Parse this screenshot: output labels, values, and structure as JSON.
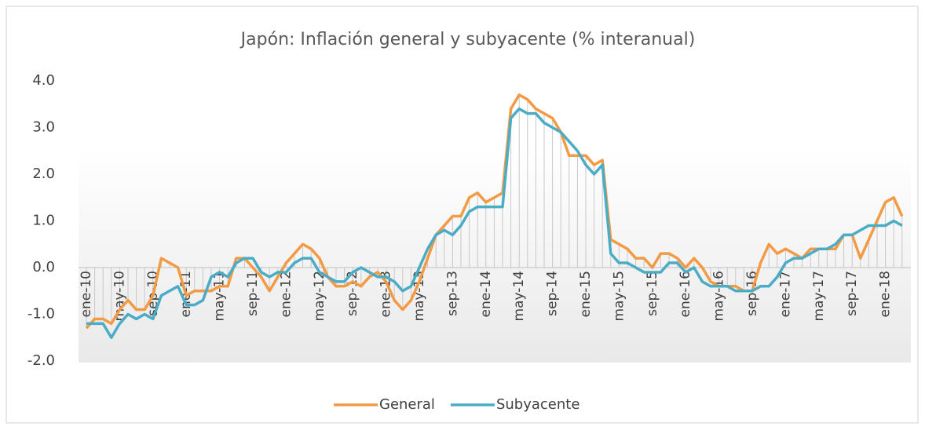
{
  "chart_data": {
    "type": "line",
    "title": "Japón: Inflación general y subyacente (% interanual)",
    "categories": [
      "ene-10",
      null,
      null,
      null,
      "may-10",
      null,
      null,
      null,
      "sep-10",
      null,
      null,
      null,
      "ene-11",
      null,
      null,
      null,
      "may-11",
      null,
      null,
      null,
      "sep-11",
      null,
      null,
      null,
      "ene-12",
      null,
      null,
      null,
      "may-12",
      null,
      null,
      null,
      "sep-12",
      null,
      null,
      null,
      "ene-13",
      null,
      null,
      null,
      "may-13",
      null,
      null,
      null,
      "sep-13",
      null,
      null,
      null,
      "ene-14",
      null,
      null,
      null,
      "may-14",
      null,
      null,
      null,
      "sep-14",
      null,
      null,
      null,
      "ene-15",
      null,
      null,
      null,
      "may-15",
      null,
      null,
      null,
      "sep-15",
      null,
      null,
      null,
      "ene-16",
      null,
      null,
      null,
      "may-16",
      null,
      null,
      null,
      "sep-16",
      null,
      null,
      null,
      "ene-17",
      null,
      null,
      null,
      "may-17",
      null,
      null,
      null,
      "sep-17",
      null,
      null,
      null,
      "ene-18",
      null,
      null
    ],
    "series": [
      {
        "name": "General",
        "color": "#f39a45",
        "values": [
          -1.3,
          -1.1,
          -1.1,
          -1.2,
          -0.9,
          -0.7,
          -0.9,
          -0.9,
          -0.6,
          0.2,
          0.1,
          0.0,
          -0.6,
          -0.5,
          -0.5,
          -0.5,
          -0.4,
          -0.4,
          0.2,
          0.2,
          0.0,
          -0.2,
          -0.5,
          -0.2,
          0.1,
          0.3,
          0.5,
          0.4,
          0.2,
          -0.2,
          -0.4,
          -0.4,
          -0.3,
          -0.4,
          -0.2,
          -0.1,
          -0.3,
          -0.7,
          -0.9,
          -0.7,
          -0.3,
          0.2,
          0.7,
          0.9,
          1.1,
          1.1,
          1.5,
          1.6,
          1.4,
          1.5,
          1.6,
          3.4,
          3.7,
          3.6,
          3.4,
          3.3,
          3.2,
          2.9,
          2.4,
          2.4,
          2.4,
          2.2,
          2.3,
          0.6,
          0.5,
          0.4,
          0.2,
          0.2,
          0.0,
          0.3,
          0.3,
          0.2,
          0.0,
          0.2,
          0.0,
          -0.3,
          -0.4,
          -0.4,
          -0.4,
          -0.5,
          -0.5,
          0.1,
          0.5,
          0.3,
          0.4,
          0.3,
          0.2,
          0.4,
          0.4,
          0.4,
          0.4,
          0.7,
          0.7,
          0.2,
          0.6,
          1.0,
          1.4,
          1.5,
          1.1
        ]
      },
      {
        "name": "Subyacente",
        "color": "#4bacc6",
        "values": [
          -1.2,
          -1.2,
          -1.2,
          -1.5,
          -1.2,
          -1.0,
          -1.1,
          -1.0,
          -1.1,
          -0.6,
          -0.5,
          -0.4,
          -0.8,
          -0.8,
          -0.7,
          -0.2,
          -0.1,
          -0.2,
          0.1,
          0.2,
          0.2,
          -0.1,
          -0.2,
          -0.1,
          -0.1,
          0.1,
          0.2,
          0.2,
          -0.1,
          -0.2,
          -0.3,
          -0.3,
          -0.1,
          0.0,
          -0.1,
          -0.2,
          -0.2,
          -0.3,
          -0.5,
          -0.4,
          0.0,
          0.4,
          0.7,
          0.8,
          0.7,
          0.9,
          1.2,
          1.3,
          1.3,
          1.3,
          1.3,
          3.2,
          3.4,
          3.3,
          3.3,
          3.1,
          3.0,
          2.9,
          2.7,
          2.5,
          2.2,
          2.0,
          2.2,
          0.3,
          0.1,
          0.1,
          0.0,
          -0.1,
          -0.1,
          -0.1,
          0.1,
          0.1,
          -0.1,
          0.0,
          -0.3,
          -0.4,
          -0.4,
          -0.4,
          -0.5,
          -0.5,
          -0.5,
          -0.4,
          -0.4,
          -0.2,
          0.1,
          0.2,
          0.2,
          0.3,
          0.4,
          0.4,
          0.5,
          0.7,
          0.7,
          0.8,
          0.9,
          0.9,
          0.9,
          1.0,
          0.9
        ]
      }
    ],
    "ylim": [
      -2,
      4
    ],
    "yticks": [
      {
        "value": -2,
        "label": "-2.0"
      },
      {
        "value": -1,
        "label": "-1.0"
      },
      {
        "value": 0,
        "label": "0.0"
      },
      {
        "value": 1,
        "label": "1.0"
      },
      {
        "value": 2,
        "label": "2.0"
      },
      {
        "value": 3,
        "label": "3.0"
      },
      {
        "value": 4,
        "label": "4.0"
      }
    ],
    "legend": "bottom"
  }
}
